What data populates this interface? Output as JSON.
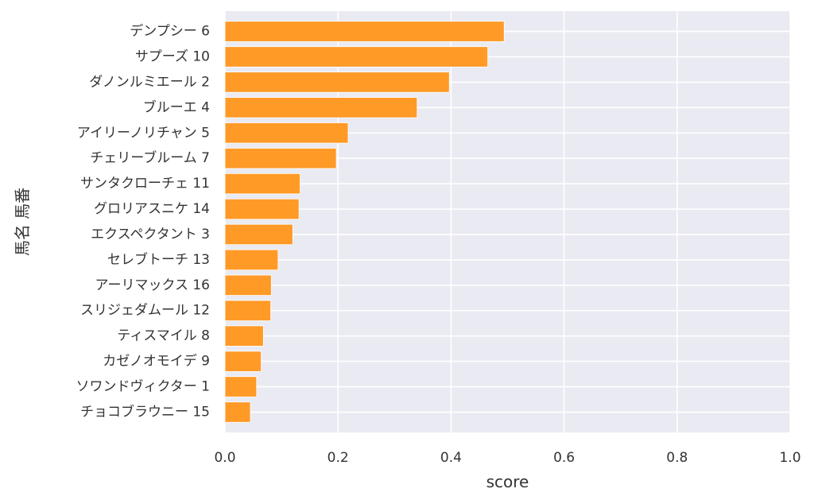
{
  "chart_data": {
    "type": "bar",
    "orientation": "horizontal",
    "categories": [
      "デンプシー 6",
      "サプーズ 10",
      "ダノンルミエール 2",
      "ブルーエ 4",
      "アイリーノリチャン 5",
      "チェリーブルーム 7",
      "サンタクローチェ 11",
      "グロリアスニケ 14",
      "エクスペクタント 3",
      "セレブトーチ 13",
      "アーリマックス 16",
      "スリジェダムール 12",
      "ティスマイル 8",
      "カゼノオモイデ 9",
      "ソワンドヴィクター 1",
      "チョコブラウニー 15"
    ],
    "values": [
      0.494,
      0.465,
      0.397,
      0.34,
      0.218,
      0.197,
      0.133,
      0.131,
      0.12,
      0.094,
      0.082,
      0.081,
      0.068,
      0.064,
      0.056,
      0.045
    ],
    "xlabel": "score",
    "ylabel": "馬名 馬番",
    "xlim": [
      0,
      1.0
    ],
    "xticks": [
      "0.0",
      "0.2",
      "0.4",
      "0.6",
      "0.8",
      "1.0"
    ],
    "grid": true,
    "bar_color": "#ff9a27",
    "background_color": "#eaeaf2"
  }
}
